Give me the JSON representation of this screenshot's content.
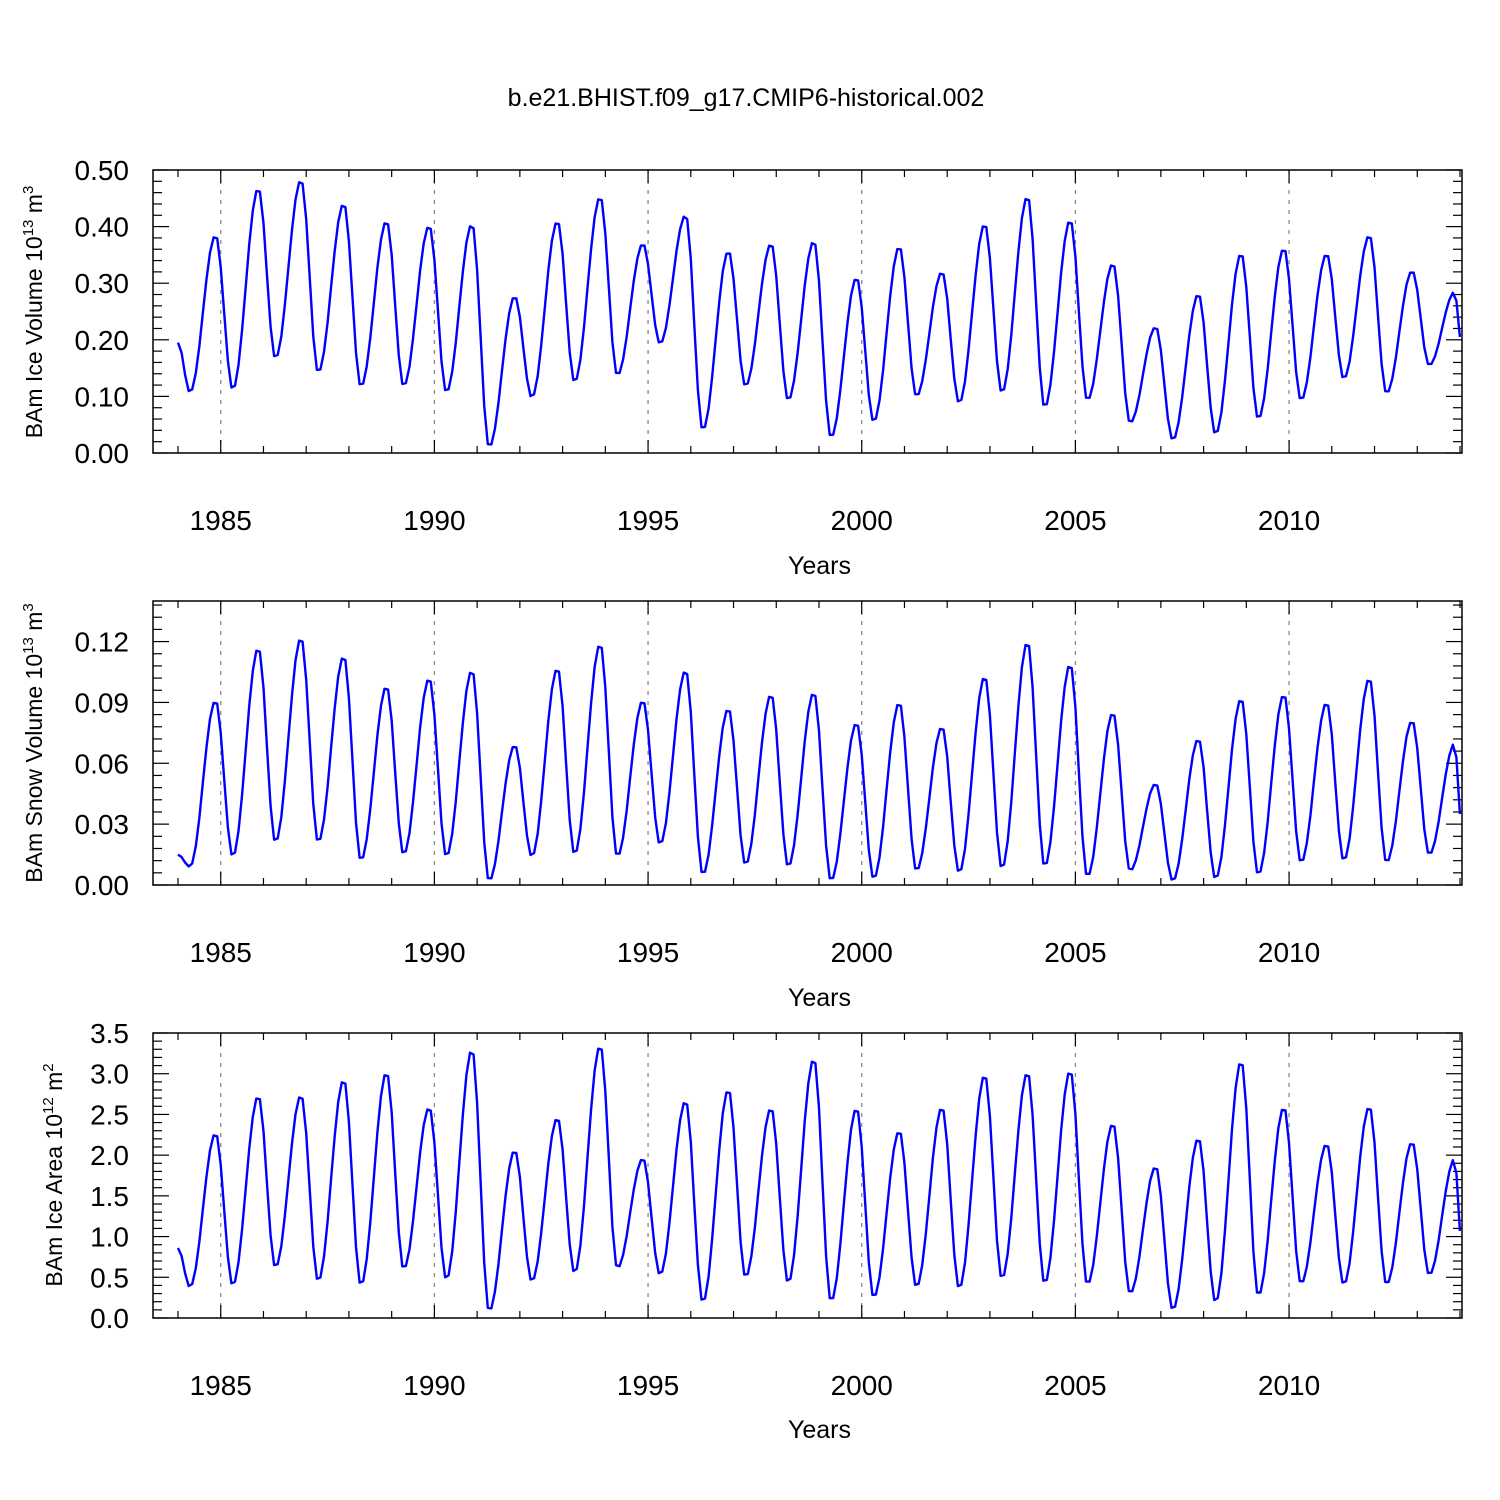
{
  "figure": {
    "title": "b.e21.BHIST.f09_g17.CMIP6-historical.002"
  },
  "colors": {
    "series": "#0000ff",
    "axes": "#000000",
    "grid": "#888888",
    "background": "#ffffff"
  },
  "chart_data": [
    {
      "type": "line",
      "name": "ice-volume",
      "ylabel": "BAm Ice Volume 10",
      "ylabel_exp": "13",
      "ylabel_unit": "m",
      "ylabel_unit_exp": "3",
      "xlabel": "Years",
      "xlim": [
        1984.0,
        2014.0
      ],
      "ylim": [
        0.0,
        0.5
      ],
      "xticks": [
        1985,
        1990,
        1995,
        2000,
        2005,
        2010
      ],
      "xticklabels": [
        "1985",
        "1990",
        "1995",
        "2000",
        "2005",
        "2010"
      ],
      "yticks": [
        0,
        0.1,
        0.2,
        0.3,
        0.4,
        0.5
      ],
      "yticklabels": [
        "0.00",
        "0.10",
        "0.20",
        "0.30",
        "0.40",
        "0.50"
      ],
      "grid": "vertical dashed at major x ticks",
      "start_year": 1984.0,
      "step": 0.08333,
      "maxima": [
        0.385,
        0.468,
        0.483,
        0.441,
        0.41,
        0.402,
        0.405,
        0.277,
        0.41,
        0.453,
        0.37,
        0.421,
        0.357,
        0.37,
        0.375,
        0.31,
        0.365,
        0.32,
        0.405,
        0.454,
        0.412,
        0.335,
        0.223,
        0.281,
        0.353,
        0.362,
        0.352,
        0.385,
        0.322,
        0.285
      ],
      "minima": [
        0.107,
        0.112,
        0.167,
        0.142,
        0.117,
        0.118,
        0.107,
        0.01,
        0.098,
        0.125,
        0.137,
        0.193,
        0.04,
        0.118,
        0.093,
        0.027,
        0.055,
        0.1,
        0.088,
        0.106,
        0.08,
        0.093,
        0.053,
        0.023,
        0.033,
        0.06,
        0.093,
        0.131,
        0.105,
        0.155
      ],
      "first_value": 0.195,
      "last_value": 0.205
    },
    {
      "type": "line",
      "name": "snow-volume",
      "ylabel": "BAm Snow Volume 10",
      "ylabel_exp": "13",
      "ylabel_unit": "m",
      "ylabel_unit_exp": "3",
      "xlabel": "Years",
      "xlim": [
        1984.0,
        2014.0
      ],
      "ylim": [
        0.0,
        0.14
      ],
      "xticks": [
        1985,
        1990,
        1995,
        2000,
        2005,
        2010
      ],
      "xticklabels": [
        "1985",
        "1990",
        "1995",
        "2000",
        "2005",
        "2010"
      ],
      "yticks": [
        0,
        0.03,
        0.06,
        0.09,
        0.12
      ],
      "yticklabels": [
        "0.00",
        "0.03",
        "0.06",
        "0.09",
        "0.12"
      ],
      "grid": "vertical dashed at major x ticks",
      "start_year": 1984.0,
      "step": 0.08333,
      "maxima": [
        0.091,
        0.117,
        0.122,
        0.113,
        0.098,
        0.102,
        0.106,
        0.069,
        0.107,
        0.119,
        0.091,
        0.106,
        0.087,
        0.094,
        0.095,
        0.08,
        0.09,
        0.078,
        0.103,
        0.12,
        0.109,
        0.085,
        0.05,
        0.072,
        0.092,
        0.094,
        0.09,
        0.102,
        0.081,
        0.07
      ],
      "minima": [
        0.009,
        0.014,
        0.021,
        0.021,
        0.012,
        0.015,
        0.014,
        0.002,
        0.014,
        0.015,
        0.014,
        0.02,
        0.005,
        0.01,
        0.009,
        0.002,
        0.003,
        0.007,
        0.006,
        0.008,
        0.009,
        0.004,
        0.007,
        0.002,
        0.003,
        0.005,
        0.011,
        0.012,
        0.011,
        0.015
      ],
      "first_value": 0.015,
      "last_value": 0.035
    },
    {
      "type": "line",
      "name": "ice-area",
      "ylabel": "BAm Ice Area 10",
      "ylabel_exp": "12",
      "ylabel_unit": "m",
      "ylabel_unit_exp": "2",
      "xlabel": "Years",
      "xlim": [
        1984.0,
        2014.0
      ],
      "ylim": [
        0.0,
        3.5
      ],
      "xticks": [
        1985,
        1990,
        1995,
        2000,
        2005,
        2010
      ],
      "xticklabels": [
        "1985",
        "1990",
        "1995",
        "2000",
        "2005",
        "2010"
      ],
      "yticks": [
        0,
        0.5,
        1.0,
        1.5,
        2.0,
        2.5,
        3.0,
        3.5
      ],
      "yticklabels": [
        "0.0",
        "0.5",
        "1.0",
        "1.5",
        "2.0",
        "2.5",
        "3.0",
        "3.5"
      ],
      "grid": "vertical dashed at major x ticks",
      "start_year": 1984.0,
      "step": 0.08333,
      "maxima": [
        2.27,
        2.73,
        2.74,
        2.93,
        3.02,
        2.59,
        3.3,
        2.06,
        2.46,
        3.35,
        1.96,
        2.67,
        2.81,
        2.58,
        3.19,
        2.58,
        2.3,
        2.59,
        2.99,
        3.02,
        3.04,
        2.39,
        1.86,
        2.21,
        3.16,
        2.59,
        2.14,
        2.6,
        2.16,
        1.96
      ],
      "minima": [
        0.38,
        0.4,
        0.62,
        0.45,
        0.4,
        0.6,
        0.47,
        0.08,
        0.45,
        0.55,
        0.61,
        0.53,
        0.19,
        0.5,
        0.43,
        0.2,
        0.25,
        0.38,
        0.36,
        0.48,
        0.42,
        0.41,
        0.3,
        0.1,
        0.19,
        0.27,
        0.42,
        0.41,
        0.41,
        0.53
      ],
      "first_value": 0.86,
      "last_value": 1.07
    }
  ]
}
